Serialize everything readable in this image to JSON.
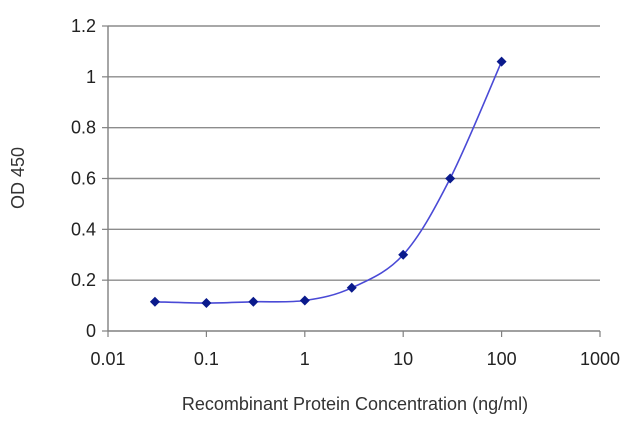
{
  "chart_data": {
    "type": "line",
    "title": "",
    "xlabel": "Recombinant Protein Concentration (ng/ml)",
    "ylabel": "OD 450",
    "x_scale": "log",
    "xlim": [
      0.01,
      1000
    ],
    "ylim": [
      0,
      1.2
    ],
    "x_ticks": [
      "0.01",
      "0.1",
      "1",
      "10",
      "100",
      "1000"
    ],
    "y_ticks": [
      "0",
      "0.2",
      "0.4",
      "0.6",
      "0.8",
      "1",
      "1.2"
    ],
    "grid": "horizontal",
    "series": [
      {
        "x": [
          0.03,
          0.1,
          0.3,
          1,
          3,
          10,
          30,
          100
        ],
        "y": [
          0.115,
          0.11,
          0.115,
          0.12,
          0.17,
          0.3,
          0.6,
          1.06
        ]
      }
    ],
    "colors": {
      "line": "#4a4ad6",
      "marker": "#0a1a8c",
      "grid": "#8c8c8c",
      "axis": "#808080"
    }
  }
}
